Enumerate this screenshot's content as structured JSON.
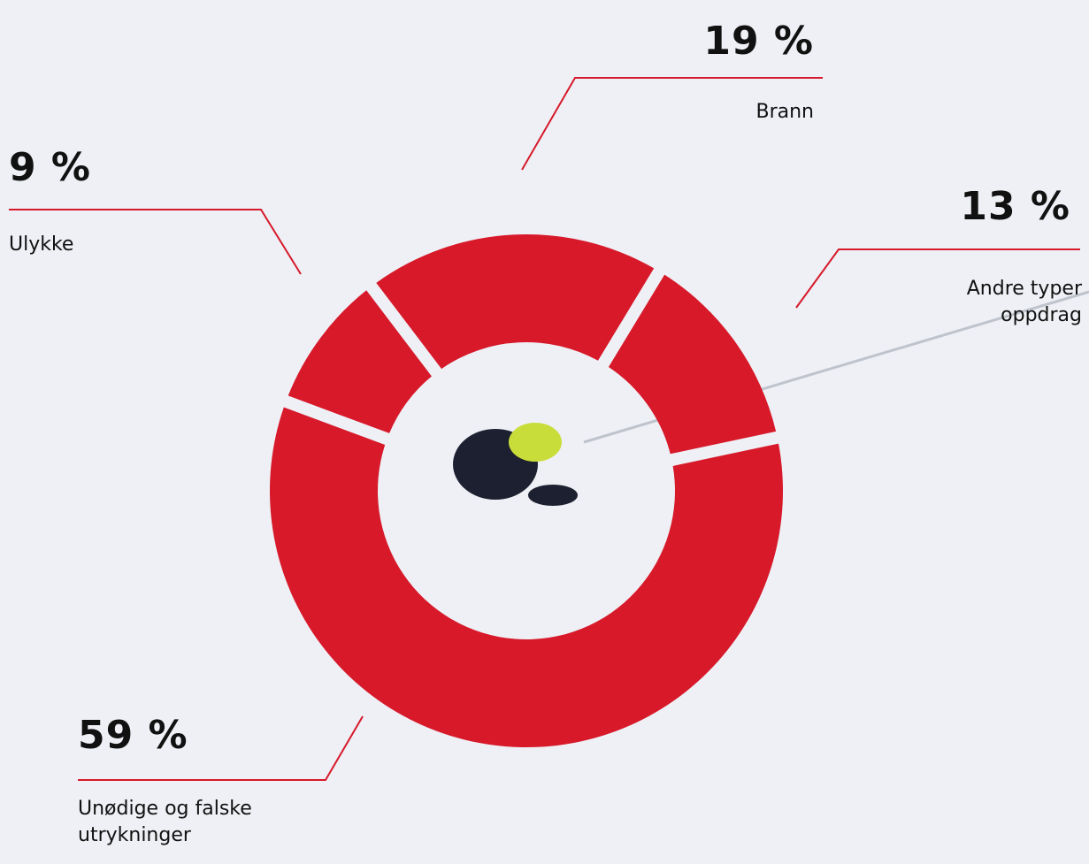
{
  "chart_data": {
    "type": "donut",
    "categories": [
      "Unødige og falske utrykninger",
      "Ulykke",
      "Brann",
      "Andre typer oppdrag"
    ],
    "values": [
      59,
      9,
      19,
      13
    ],
    "value_labels": [
      "59 %",
      "9 %",
      "19 %",
      "13 %"
    ],
    "color": "#d7192a"
  }
}
